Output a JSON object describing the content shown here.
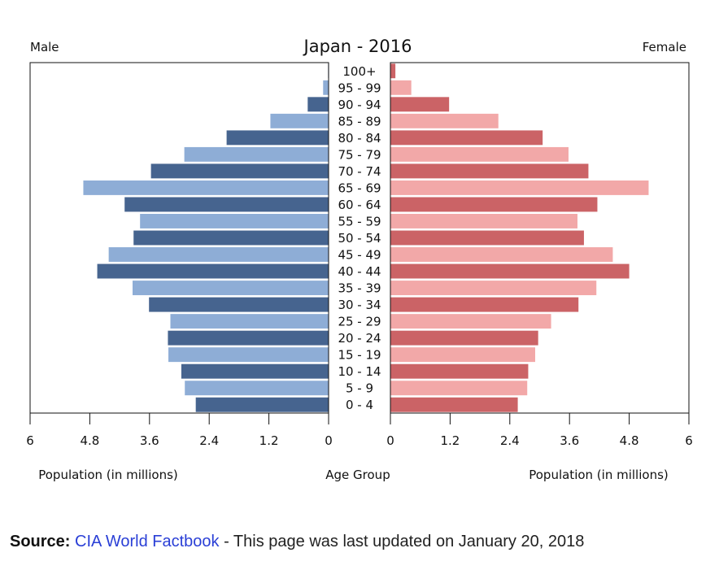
{
  "chart_data": {
    "type": "bar",
    "title": "Japan - 2016",
    "left_label": "Male",
    "right_label": "Female",
    "xlabel_left": "Population (in millions)",
    "xlabel_center": "Age Group",
    "xlabel_right": "Population (in millions)",
    "xlim": [
      0,
      6
    ],
    "x_ticks": [
      "0",
      "1.2",
      "2.4",
      "3.6",
      "4.8",
      "6"
    ],
    "x_ticks_left": [
      "6",
      "4.8",
      "3.6",
      "2.4",
      "1.2",
      "0"
    ],
    "categories": [
      "100+",
      "95 - 99",
      "90 - 94",
      "85 - 89",
      "80 - 84",
      "75 - 79",
      "70 - 74",
      "65 - 69",
      "60 - 64",
      "55 - 59",
      "50 - 54",
      "45 - 49",
      "40 - 44",
      "35 - 39",
      "30 - 34",
      "25 - 29",
      "20 - 24",
      "15 - 19",
      "10 - 14",
      "5 - 9",
      "0 - 4"
    ],
    "series": [
      {
        "name": "Male",
        "values": [
          0.01,
          0.11,
          0.42,
          1.17,
          2.05,
          2.9,
          3.57,
          4.93,
          4.1,
          3.79,
          3.92,
          4.42,
          4.65,
          3.94,
          3.61,
          3.18,
          3.23,
          3.22,
          2.96,
          2.89,
          2.67
        ]
      },
      {
        "name": "Female",
        "values": [
          0.1,
          0.42,
          1.18,
          2.17,
          3.06,
          3.58,
          3.98,
          5.19,
          4.16,
          3.76,
          3.89,
          4.47,
          4.8,
          4.14,
          3.78,
          3.23,
          2.97,
          2.91,
          2.77,
          2.75,
          2.56
        ]
      }
    ],
    "colors": {
      "male_dark": "#46648f",
      "male_light": "#8eadd6",
      "female_dark": "#cb6366",
      "female_light": "#f2a8a8"
    }
  },
  "source": {
    "label": "Source:",
    "link_text": "CIA World Factbook",
    "rest": " - This page was last updated on January 20, 2018"
  }
}
